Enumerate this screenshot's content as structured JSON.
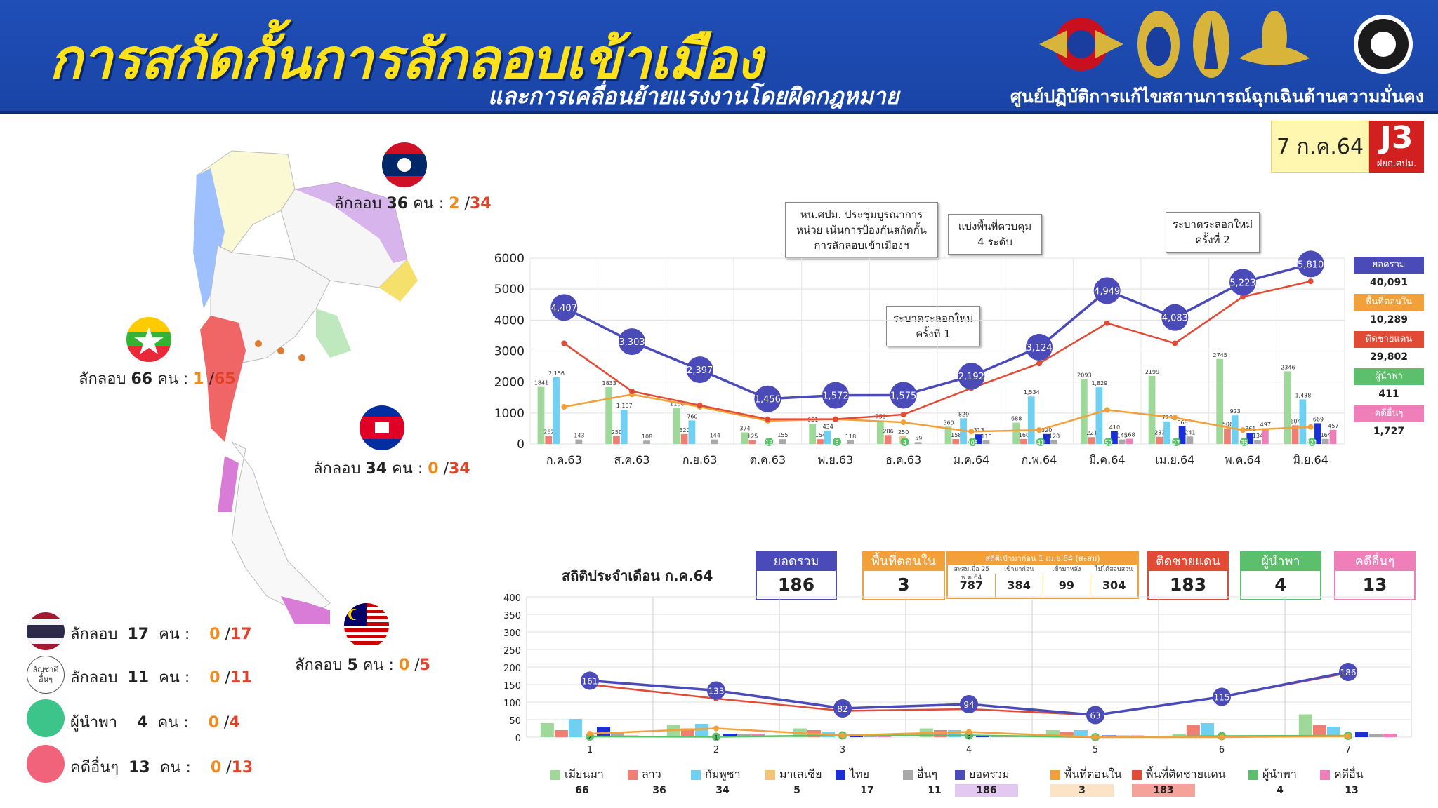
{
  "header": {
    "title": "การสกัดกั้นการลักลอบเข้าเมือง",
    "subtitle": "และการเคลื่อนย้ายแรงงานโดยผิดกฎหมาย",
    "center_name": "ศูนย์ปฏิบัติการแก้ไขสถานการณ์ฉุกเฉินด้านความมั่นคง",
    "date": "7 ก.ค.64",
    "badge": "J3",
    "badge_sub": "ฝยก.ศปม."
  },
  "map_labels": {
    "laos": {
      "prefix": "ลักลอบ",
      "count": "36",
      "unit": "คน",
      "a": "2",
      "b": "34"
    },
    "myanmar": {
      "prefix": "ลักลอบ",
      "count": "66",
      "unit": "คน",
      "a": "1",
      "b": "65"
    },
    "cambodia": {
      "prefix": "ลักลอบ",
      "count": "34",
      "unit": "คน",
      "a": "0",
      "b": "34"
    },
    "malaysia": {
      "prefix": "ลักลอบ",
      "count": "5",
      "unit": "คน",
      "a": "0",
      "b": "5"
    }
  },
  "left_stats": [
    {
      "label": "ลักลอบ",
      "count": "17",
      "unit": "คน",
      "a": "0",
      "b": "17"
    },
    {
      "label": "ลักลอบ",
      "count": "11",
      "unit": "คน",
      "a": "0",
      "b": "11",
      "icon_text": "สัญชาติอื่นๆ"
    },
    {
      "label": "ผู้นำพา",
      "count": "4",
      "unit": "คน",
      "a": "0",
      "b": "4"
    },
    {
      "label": "คดีอื่นๆ",
      "count": "13",
      "unit": "คน",
      "a": "0",
      "b": "13"
    }
  ],
  "annotations": {
    "a1": "หน.ศปม. ประชุมบูรณาการหน่วย เน้นการป้องกันสกัดกั้น การลักลอบเข้าเมืองฯ",
    "a2": "แบ่งพื้นที่ควบคุม 4 ระดับ",
    "a3": "ระบาดระลอกใหม่ ครั้งที่ 2",
    "a4": "ระบาดระลอกใหม่ ครั้งที่ 1"
  },
  "right_legend": [
    {
      "label": "ยอดรวม",
      "value": "40,091",
      "color": "#4a4ab8"
    },
    {
      "label": "พื้นที่ตอนใน",
      "value": "10,289",
      "color": "#f2a13a"
    },
    {
      "label": "ติดชายแดน",
      "value": "29,802",
      "color": "#e14a35"
    },
    {
      "label": "ผู้นำพา",
      "value": "411",
      "color": "#5cbf6b"
    },
    {
      "label": "คดีอื่นๆ",
      "value": "1,727",
      "color": "#ef7fb9"
    }
  ],
  "monthly_summary": {
    "title": "สถิติประจำเดือน ก.ค.64",
    "total": {
      "label": "ยอดรวม",
      "value": "186",
      "color": "#4a4ab8"
    },
    "inner": {
      "label": "พื้นที่ตอนใน",
      "value": "3",
      "color": "#f2a13a"
    },
    "stats_since": {
      "label": "สถิติเข้ามาก่อน 1 เม.ย.64 (สะสม)",
      "sub1": "สะสมเมื่อ 25 พ.ค.64",
      "sub2": "เข้ามาก่อน",
      "sub3": "เข้ามาหลัง",
      "sub4": "ไม่ได้สอบสวน",
      "v1": "787",
      "v2": "384",
      "v3": "99",
      "v4": "304"
    },
    "border": {
      "label": "ติดชายแดน",
      "value": "183",
      "color": "#e14a35"
    },
    "leader": {
      "label": "ผู้นำพา",
      "value": "4",
      "color": "#5cbf6b"
    },
    "other": {
      "label": "คดีอื่นๆ",
      "value": "13",
      "color": "#ef7fb9"
    }
  },
  "bottom_legend": [
    {
      "label": "เมียนมา",
      "count": "66",
      "color": "#9ed99a"
    },
    {
      "label": "ลาว",
      "count": "36",
      "color": "#f07f73"
    },
    {
      "label": "กัมพูชา",
      "count": "34",
      "color": "#6fd0f2"
    },
    {
      "label": "มาเลเซีย",
      "count": "5",
      "color": "#f6c27a"
    },
    {
      "label": "ไทย",
      "count": "17",
      "color": "#1a2fd6"
    },
    {
      "label": "อื่นๆ",
      "count": "11",
      "color": "#a8a8a8"
    },
    {
      "label": "ยอดรวม",
      "count": "186",
      "color": "#4a4ab8",
      "bg": "#e3c9f2"
    },
    {
      "label": "พื้นที่ตอนใน",
      "count": "3",
      "color": "#f2a13a",
      "bg": "#fde3c6"
    },
    {
      "label": "พื้นที่ติดชายแดน",
      "count": "183",
      "color": "#e14a35",
      "bg": "#f5a39a"
    },
    {
      "label": "ผู้นำพา",
      "count": "4",
      "color": "#5cbf6b"
    },
    {
      "label": "คดีอื่น",
      "count": "13",
      "color": "#ef7fb9"
    }
  ],
  "chart_data": [
    {
      "type": "bar",
      "categories": [
        "ก.ค.63",
        "ส.ค.63",
        "ก.ย.63",
        "ต.ค.63",
        "พ.ย.63",
        "ธ.ค.63",
        "ม.ค.64",
        "ก.พ.64",
        "มี.ค.64",
        "เม.ย.64",
        "พ.ค.64",
        "มิ.ย.64"
      ],
      "ylim": [
        0,
        6000
      ],
      "yticks": [
        "0",
        "1000",
        "2000",
        "3000",
        "4000",
        "5000",
        "6000"
      ],
      "grid": true,
      "bar_series": [
        {
          "color": "#9ed99a",
          "values": [
            1841,
            1833,
            1166,
            374,
            651,
            759,
            560,
            688,
            2093,
            2199,
            2745,
            2346
          ],
          "labels": [
            "1841",
            "1833",
            "1166",
            "374",
            "651",
            "759",
            "560",
            "688",
            "2093",
            "2199",
            "2745",
            "2346"
          ]
        },
        {
          "color": "#f07f73",
          "values": [
            262,
            250,
            320,
            125,
            154,
            286,
            158,
            160,
            221,
            233,
            506,
            604
          ],
          "labels": [
            "262",
            "250",
            "320",
            "125",
            "154",
            "286",
            "158",
            "160",
            "221",
            "233",
            "506",
            "604"
          ]
        },
        {
          "color": "#6fd0f2",
          "values": [
            2156,
            1107,
            760,
            1,
            434,
            1,
            829,
            1534,
            1829,
            729,
            923,
            1438
          ],
          "labels": [
            "2,156",
            "1,107",
            "760",
            "",
            "434",
            "",
            "829",
            "1,534",
            "1,829",
            "729",
            "923",
            "1,438"
          ]
        },
        {
          "color": "#f6c27a",
          "values": [
            0,
            0,
            0,
            0,
            0,
            250,
            10,
            16,
            0,
            0,
            0,
            0
          ],
          "labels": [
            "",
            "",
            "",
            "",
            "",
            "250",
            "",
            "",
            "",
            "",
            "",
            ""
          ]
        },
        {
          "color": "#1a2fd6",
          "values": [
            0,
            0,
            0,
            0,
            0,
            0,
            313,
            320,
            410,
            568,
            361,
            669
          ],
          "labels": [
            "",
            "",
            "",
            "",
            "",
            "",
            "313",
            "320",
            "410",
            "568",
            "361",
            "669"
          ]
        },
        {
          "color": "#a8a8a8",
          "values": [
            143,
            108,
            144,
            155,
            118,
            59,
            116,
            128,
            145,
            241,
            134,
            164
          ],
          "labels": [
            "143",
            "108",
            "144",
            "155",
            "118",
            "59",
            "116",
            "128",
            "145",
            "241",
            "134",
            "164"
          ]
        },
        {
          "color": "#ef7fb9",
          "values": [
            0,
            0,
            0,
            0,
            0,
            0,
            0,
            0,
            168,
            0,
            497,
            457
          ],
          "labels": [
            "",
            "",
            "",
            "",
            "",
            "",
            "",
            "",
            "168",
            "",
            "497",
            "457"
          ]
        }
      ],
      "small_labels": {
        "values": [
          "",
          "",
          "",
          "13",
          "8",
          "4",
          "105",
          "41",
          "59",
          "27",
          "35",
          "121"
        ]
      },
      "series": [
        {
          "name": "ยอดรวม",
          "color": "#4a4ab8",
          "values": [
            4407,
            3303,
            2397,
            1456,
            1572,
            1575,
            2192,
            3124,
            4949,
            4083,
            5223,
            5810
          ],
          "labels": [
            "4,407",
            "3,303",
            "2,397",
            "1,456",
            "1,572",
            "1,575",
            "2,192",
            "3,124",
            "4,949",
            "4,083",
            "5,223",
            "5,810"
          ]
        },
        {
          "name": "ติดชายแดน",
          "color": "#e14a35",
          "values": [
            3250,
            1700,
            1250,
            800,
            800,
            950,
            1800,
            2600,
            3900,
            3250,
            4750,
            5250
          ]
        },
        {
          "name": "พื้นที่ตอนใน",
          "color": "#f2a13a",
          "values": [
            1200,
            1600,
            1200,
            750,
            800,
            700,
            400,
            450,
            1100,
            850,
            450,
            550
          ]
        }
      ]
    },
    {
      "type": "bar",
      "categories": [
        "1",
        "2",
        "3",
        "4",
        "5",
        "6",
        "7"
      ],
      "ylim": [
        0,
        400
      ],
      "yticks": [
        "0",
        "50",
        "100",
        "150",
        "200",
        "250",
        "300",
        "350",
        "400"
      ],
      "grid": true,
      "bar_series": [
        {
          "color": "#9ed99a",
          "values": [
            40,
            35,
            25,
            25,
            20,
            10,
            65
          ]
        },
        {
          "color": "#f07f73",
          "values": [
            20,
            25,
            20,
            20,
            15,
            35,
            35
          ]
        },
        {
          "color": "#6fd0f2",
          "values": [
            52,
            38,
            15,
            20,
            20,
            40,
            30
          ]
        },
        {
          "color": "#f6c27a",
          "values": [
            0,
            0,
            0,
            0,
            0,
            5,
            0
          ]
        },
        {
          "color": "#1a2fd6",
          "values": [
            30,
            10,
            5,
            5,
            5,
            5,
            15
          ]
        },
        {
          "color": "#a8a8a8",
          "values": [
            15,
            10,
            5,
            5,
            5,
            5,
            10
          ]
        },
        {
          "color": "#ef7fb9",
          "values": [
            5,
            10,
            5,
            5,
            5,
            5,
            10
          ]
        }
      ],
      "series": [
        {
          "name": "ยอดรวม",
          "color": "#4a4ab8",
          "values": [
            161,
            133,
            82,
            94,
            63,
            115,
            186
          ],
          "labels": [
            "161",
            "133",
            "82",
            "94",
            "63",
            "115",
            "186"
          ]
        },
        {
          "name": "พื้นที่ติดชายแดน",
          "color": "#e14a35",
          "values": [
            150,
            110,
            75,
            80,
            63,
            115,
            183
          ]
        },
        {
          "name": "พื้นที่ตอนใน",
          "color": "#f2a13a",
          "values": [
            10,
            25,
            5,
            15,
            0,
            0,
            3
          ]
        },
        {
          "name": "ผู้นำพา",
          "color": "#5cbf6b",
          "values": [
            2,
            1,
            5,
            5,
            0,
            3,
            4
          ],
          "labels": [
            "2",
            "1",
            "5",
            "5",
            "0",
            "3",
            "4"
          ]
        }
      ]
    }
  ]
}
